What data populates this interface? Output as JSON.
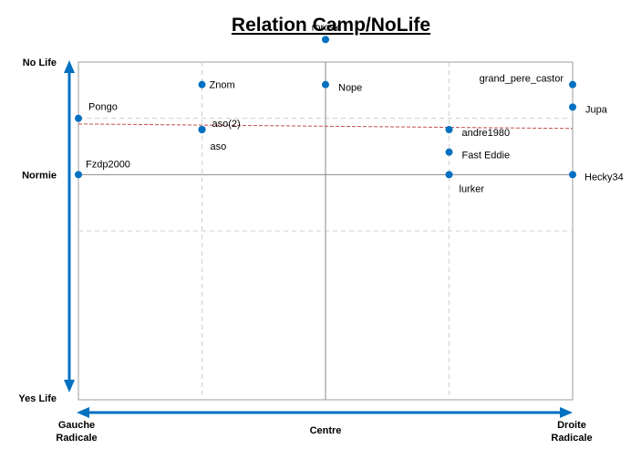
{
  "chart_data": {
    "type": "scatter",
    "title": "Relation Camp/NoLife",
    "xlabel": "",
    "ylabel": "",
    "xlim": [
      -2,
      2
    ],
    "ylim": [
      -2,
      1
    ],
    "x_ticks": [
      {
        "value": -2,
        "lines": [
          "Gauche",
          "Radicale"
        ]
      },
      {
        "value": 0,
        "lines": [
          "Centre"
        ]
      },
      {
        "value": 2,
        "lines": [
          "Droite",
          "Radicale"
        ]
      }
    ],
    "y_ticks": [
      {
        "value": 1,
        "label": "No Life"
      },
      {
        "value": 0,
        "label": "Normie"
      },
      {
        "value": -2,
        "label": "Yes Life"
      }
    ],
    "grid": true,
    "marker_color": "#0070C0",
    "arrow_color": "#0070C0",
    "trendline_color": "#C0504D",
    "trendline": {
      "x": [
        -2,
        2
      ],
      "y": [
        0.45,
        0.41
      ]
    },
    "points": [
      {
        "name": "rorosk",
        "x": 0,
        "y": 1.2
      },
      {
        "name": "Znom",
        "x": -1,
        "y": 0.8
      },
      {
        "name": "Nope",
        "x": 0,
        "y": 0.8
      },
      {
        "name": "grand_pere_castor",
        "x": 2,
        "y": 0.8
      },
      {
        "name": "Jupa",
        "x": 2,
        "y": 0.6
      },
      {
        "name": "Pongo",
        "x": -2,
        "y": 0.5
      },
      {
        "name": "aso(2)",
        "x": -1,
        "y": 0.4
      },
      {
        "name": "aso",
        "x": -1,
        "y": 0.4
      },
      {
        "name": "andre1980",
        "x": 1,
        "y": 0.4
      },
      {
        "name": "Fast Eddie",
        "x": 1,
        "y": 0.2
      },
      {
        "name": "Fzdp2000",
        "x": -2,
        "y": 0
      },
      {
        "name": "lurker",
        "x": 1,
        "y": 0
      },
      {
        "name": "Hecky34",
        "x": 2,
        "y": 0
      }
    ]
  }
}
